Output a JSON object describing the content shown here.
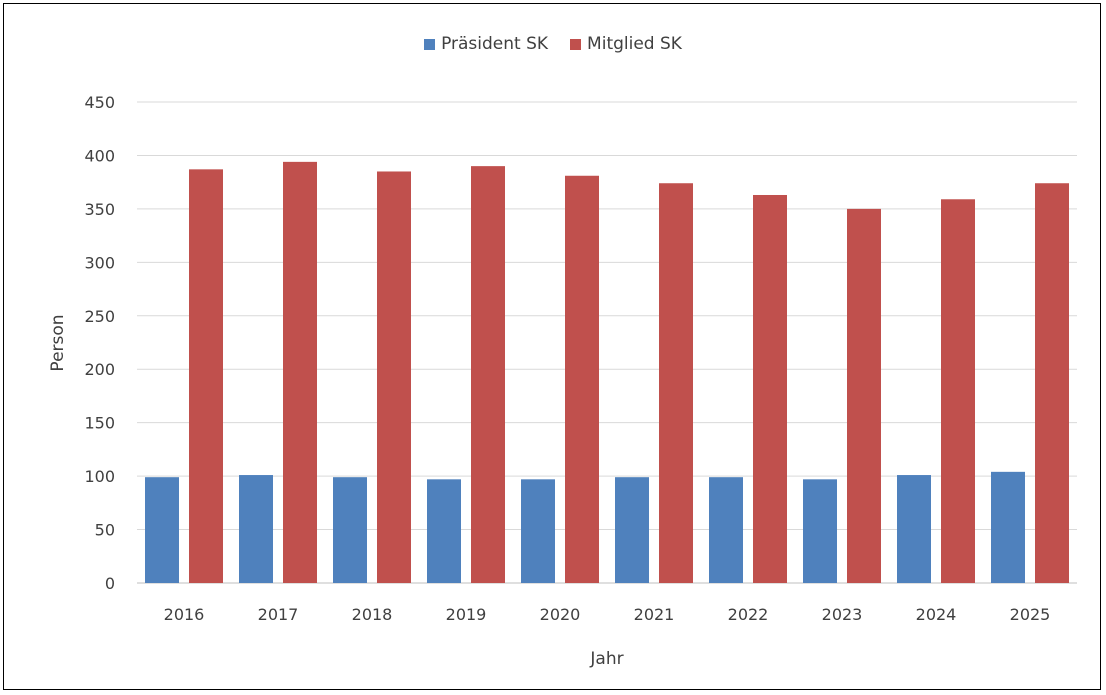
{
  "chart_data": {
    "type": "bar",
    "categories": [
      "2016",
      "2017",
      "2018",
      "2019",
      "2020",
      "2021",
      "2022",
      "2023",
      "2024",
      "2025"
    ],
    "series": [
      {
        "name": "Präsident SK",
        "color": "#4f81bd",
        "values": [
          99,
          101,
          99,
          97,
          97,
          99,
          99,
          97,
          101,
          104
        ]
      },
      {
        "name": "Mitglied SK",
        "color": "#c0504d",
        "values": [
          387,
          394,
          385,
          390,
          381,
          374,
          363,
          350,
          359,
          374
        ]
      }
    ],
    "xlabel": "Jahr",
    "ylabel": "Person",
    "ylim": [
      0,
      450
    ],
    "yticks": [
      0,
      50,
      100,
      150,
      200,
      250,
      300,
      350,
      400,
      450
    ],
    "grid": true,
    "legend_position": "top"
  }
}
